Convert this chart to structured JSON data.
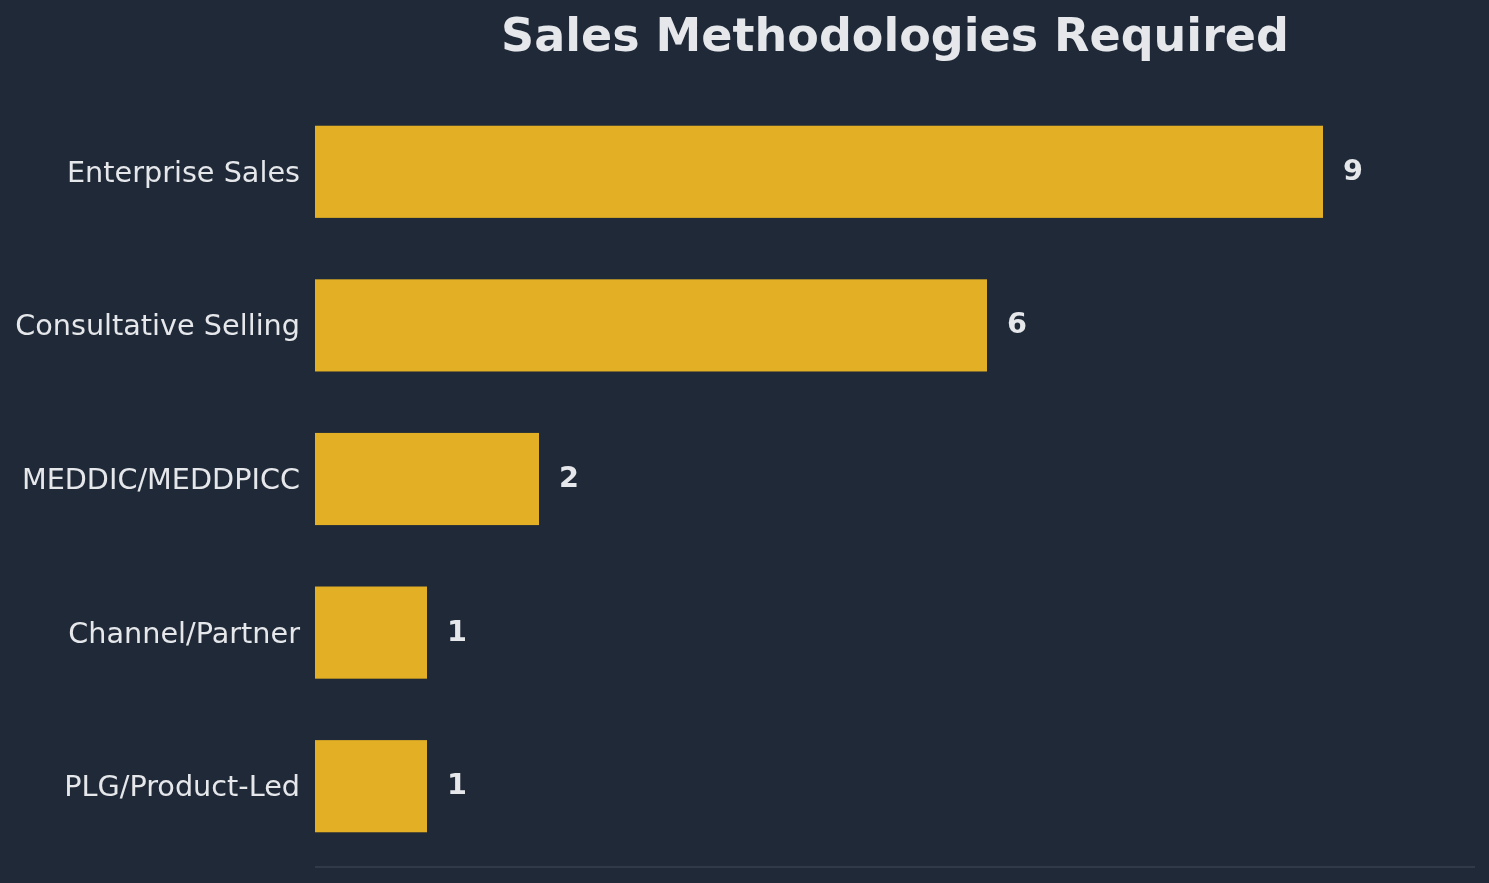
{
  "chart_data": {
    "type": "bar",
    "title": "Sales Methodologies Required",
    "orientation": "horizontal",
    "categories": [
      "Enterprise Sales",
      "Consultative Selling",
      "MEDDIC/MEDDPICC",
      "Channel/Partner",
      "PLG/Product-Led"
    ],
    "values": [
      9,
      6,
      2,
      1,
      1
    ],
    "color": "#e3af24",
    "data_labels": true
  }
}
